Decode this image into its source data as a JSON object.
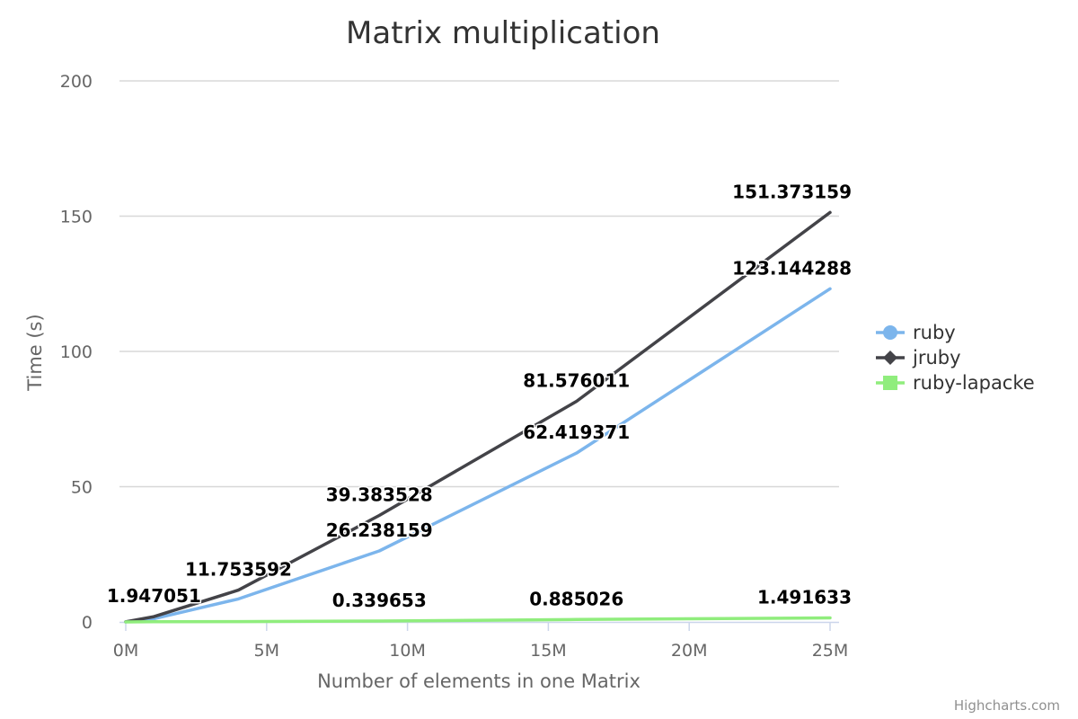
{
  "chart_data": {
    "type": "line",
    "title": "Matrix multiplication",
    "xlabel": "Number of elements in one Matrix",
    "ylabel": "Time (s)",
    "xlim": [
      0,
      25
    ],
    "ylim": [
      0,
      200
    ],
    "x_ticks": [
      0,
      5,
      10,
      15,
      20,
      25
    ],
    "x_tick_labels": [
      "0M",
      "5M",
      "10M",
      "15M",
      "20M",
      "25M"
    ],
    "y_ticks": [
      0,
      50,
      100,
      150,
      200
    ],
    "y_tick_labels": [
      "0",
      "50",
      "100",
      "150",
      "200"
    ],
    "grid": true,
    "legend_position": "right",
    "x_unit": "M elements",
    "series": [
      {
        "name": "ruby",
        "color": "#7cb5ec",
        "marker": "circle",
        "x": [
          0,
          1,
          4,
          9,
          16,
          25
        ],
        "values": [
          0.02,
          1.2,
          8.5,
          26.238159,
          62.419371,
          123.144288
        ],
        "labels": [
          {
            "index": 3,
            "text": "26.238159"
          },
          {
            "index": 4,
            "text": "62.419371"
          },
          {
            "index": 5,
            "text": "123.144288"
          }
        ]
      },
      {
        "name": "jruby",
        "color": "#434348",
        "marker": "diamond",
        "x": [
          0,
          1,
          4,
          9,
          16,
          25
        ],
        "values": [
          0.05,
          1.947051,
          11.753592,
          39.383528,
          81.576011,
          151.373159
        ],
        "labels": [
          {
            "index": 1,
            "text": "1.947051"
          },
          {
            "index": 2,
            "text": "11.753592"
          },
          {
            "index": 3,
            "text": "39.383528"
          },
          {
            "index": 4,
            "text": "81.576011"
          },
          {
            "index": 5,
            "text": "151.373159"
          }
        ]
      },
      {
        "name": "ruby-lapacke",
        "color": "#90ed7d",
        "marker": "square",
        "x": [
          0,
          1,
          4,
          9,
          16,
          25
        ],
        "values": [
          0.0,
          0.05,
          0.12,
          0.339653,
          0.885026,
          1.491633
        ],
        "labels": [
          {
            "index": 3,
            "text": "0.339653"
          },
          {
            "index": 4,
            "text": "0.885026"
          },
          {
            "index": 5,
            "text": "1.491633"
          }
        ]
      }
    ]
  },
  "credits": "Highcharts.com"
}
